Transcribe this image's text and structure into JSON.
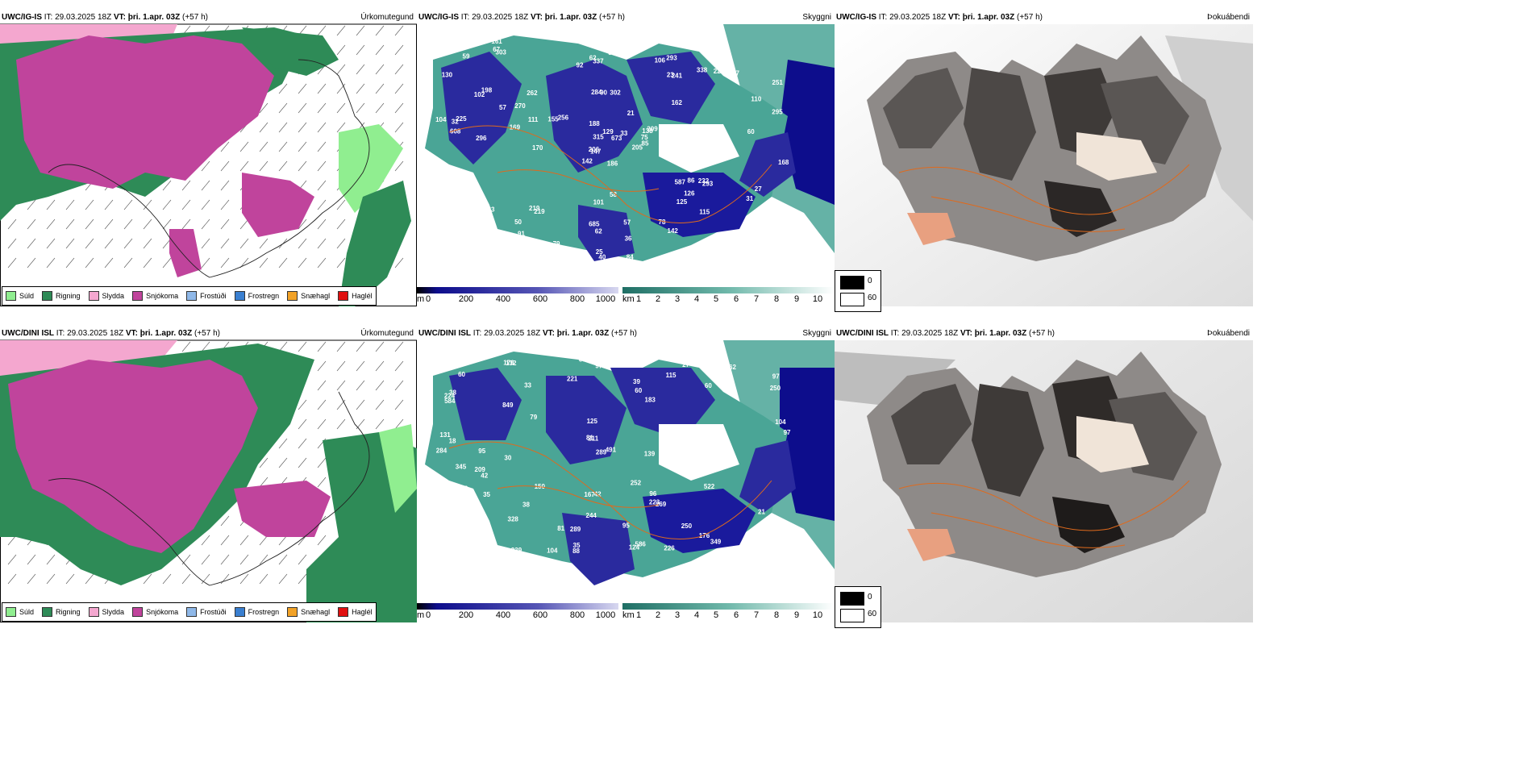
{
  "rows": [
    {
      "model": "UWC/IG-IS",
      "it_label": "IT:",
      "it_value": "29.03.2025 18Z",
      "vt_label": "VT:",
      "vt_value": "þri. 1.apr. 03Z",
      "lead": "(+57 h)",
      "titles": [
        "Úrkomutegund",
        "Skyggni",
        "Þokuábendi"
      ],
      "cloud_labels": [
        "186",
        "102",
        "147",
        "138",
        "219",
        "293",
        "302",
        "241",
        "205",
        "303",
        "108",
        "296",
        "251",
        "142",
        "162",
        "283",
        "284",
        "21",
        "33",
        "256",
        "91",
        "90",
        "209",
        "293",
        "198",
        "337",
        "608",
        "587",
        "295",
        "206",
        "685",
        "315",
        "262",
        "338",
        "219",
        "164",
        "123",
        "232",
        "252",
        "155",
        "169",
        "125",
        "139",
        "104",
        "75",
        "62",
        "85",
        "89",
        "110",
        "130",
        "126",
        "142",
        "50",
        "67",
        "77",
        "57",
        "37",
        "38",
        "170",
        "225",
        "270",
        "222",
        "161",
        "106",
        "92",
        "129",
        "157",
        "101",
        "79",
        "86",
        "111",
        "59",
        "57",
        "67",
        "188",
        "36",
        "33",
        "27",
        "25",
        "60",
        "58",
        "70",
        "84",
        "78",
        "62",
        "168",
        "115",
        "673",
        "31",
        "32",
        "40",
        "23"
      ]
    },
    {
      "model": "UWC/DINI ISL",
      "it_label": "IT:",
      "it_value": "29.03.2025 18Z",
      "vt_label": "VT:",
      "vt_value": "þri. 1.apr. 03Z",
      "lead": "(+57 h)",
      "titles": [
        "Úrkomutegund",
        "Skyggni",
        "Þokuábendi"
      ],
      "cloud_labels": [
        "284",
        "97",
        "410",
        "97",
        "224",
        "138",
        "209",
        "183",
        "125",
        "262",
        "491",
        "522",
        "604",
        "584",
        "849",
        "328",
        "586",
        "345",
        "252",
        "244",
        "250",
        "349",
        "250",
        "211",
        "239",
        "289",
        "96",
        "132",
        "114",
        "124",
        "119",
        "102",
        "139",
        "105",
        "56",
        "58",
        "60",
        "104",
        "79",
        "95",
        "97",
        "42",
        "38",
        "60",
        "35",
        "30",
        "205",
        "176",
        "269",
        "226",
        "221",
        "223",
        "81",
        "71",
        "60",
        "167",
        "303",
        "104",
        "66",
        "95",
        "289",
        "150",
        "88",
        "131",
        "115",
        "82",
        "176",
        "81",
        "39",
        "33",
        "27",
        "42",
        "44",
        "38",
        "35",
        "60",
        "21",
        "18"
      ]
    }
  ],
  "precip_legend": [
    {
      "label": "Súld",
      "color": "#90ee90"
    },
    {
      "label": "Rigning",
      "color": "#2e8b57"
    },
    {
      "label": "Slydda",
      "color": "#f4a7cf"
    },
    {
      "label": "Snjókoma",
      "color": "#c0449c"
    },
    {
      "label": "Frostúði",
      "color": "#8fb8e8"
    },
    {
      "label": "Frostregn",
      "color": "#3a7fd0"
    },
    {
      "label": "Snæhagl",
      "color": "#f2a227"
    },
    {
      "label": "Haglél",
      "color": "#e01010"
    }
  ],
  "cloudbase_bar": {
    "unit": "m",
    "labels": [
      "0",
      "200",
      "400",
      "600",
      "800",
      "1000"
    ]
  },
  "visibility_bar": {
    "unit": "km",
    "labels": [
      "1",
      "2",
      "3",
      "4",
      "5",
      "6",
      "7",
      "8",
      "9",
      "10"
    ]
  },
  "fog_legend": [
    "0",
    "60"
  ]
}
